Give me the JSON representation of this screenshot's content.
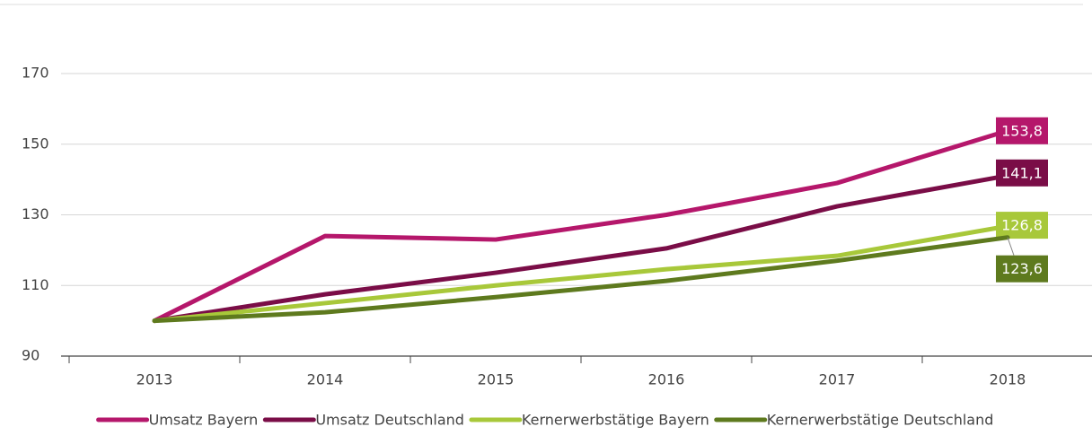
{
  "chart_data": {
    "type": "line",
    "categories": [
      "2013",
      "2014",
      "2015",
      "2016",
      "2017",
      "2018"
    ],
    "series": [
      {
        "name": "Umsatz Bayern",
        "color": "#b5176b",
        "values": [
          100,
          124,
          123,
          130,
          139,
          153.8
        ],
        "value_labels": [
          null,
          null,
          null,
          null,
          null,
          "153,8"
        ]
      },
      {
        "name": "Umsatz Deutschland",
        "color": "#7a0d47",
        "values": [
          100,
          107.5,
          113.6,
          120.5,
          132.4,
          141.1
        ],
        "value_labels": [
          null,
          null,
          null,
          null,
          null,
          "141,1"
        ]
      },
      {
        "name": "Kernerwerbstätige Bayern",
        "color": "#a8c83a",
        "values": [
          100,
          105,
          110,
          114.6,
          118.4,
          126.8
        ],
        "value_labels": [
          null,
          null,
          null,
          null,
          null,
          "126,8"
        ]
      },
      {
        "name": "Kernerwerbstätige Deutschland",
        "color": "#5e7a1e",
        "values": [
          100,
          102.4,
          106.7,
          111.3,
          117,
          123.6
        ],
        "value_labels": [
          null,
          null,
          null,
          null,
          null,
          "123,6"
        ]
      }
    ],
    "ylim": [
      90,
      170
    ],
    "yticks": [
      90,
      110,
      130,
      150,
      170
    ],
    "grid": true,
    "legend": "bottom"
  }
}
